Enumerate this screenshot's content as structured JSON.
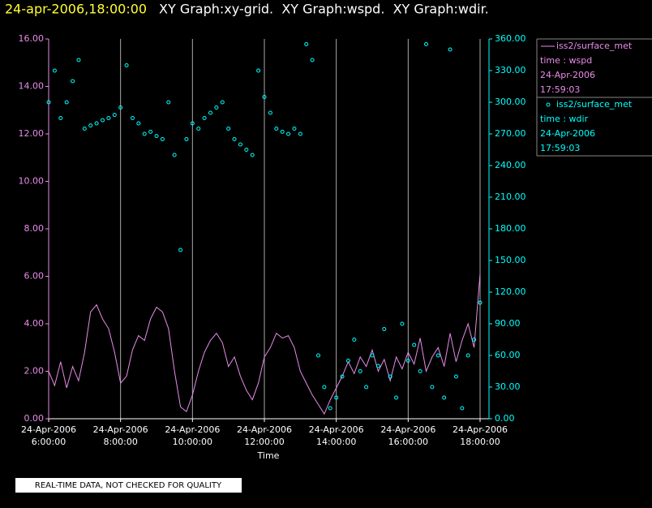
{
  "chart_data": {
    "type": "line",
    "title": "24-apr-2006,18:00:00",
    "subtitle": "XY Graph:xy-grid.  XY Graph:wspd.  XY Graph:wdir.",
    "xlabel": "Time",
    "note": "REAL-TIME DATA, NOT CHECKED FOR QUALITY",
    "grid": true,
    "x": [
      "2006-04-24T06:00:00",
      "2006-04-24T06:10:00",
      "2006-04-24T06:20:00",
      "2006-04-24T06:30:00",
      "2006-04-24T06:40:00",
      "2006-04-24T06:50:00",
      "2006-04-24T07:00:00",
      "2006-04-24T07:10:00",
      "2006-04-24T07:20:00",
      "2006-04-24T07:30:00",
      "2006-04-24T07:40:00",
      "2006-04-24T07:50:00",
      "2006-04-24T08:00:00",
      "2006-04-24T08:10:00",
      "2006-04-24T08:20:00",
      "2006-04-24T08:30:00",
      "2006-04-24T08:40:00",
      "2006-04-24T08:50:00",
      "2006-04-24T09:00:00",
      "2006-04-24T09:10:00",
      "2006-04-24T09:20:00",
      "2006-04-24T09:30:00",
      "2006-04-24T09:40:00",
      "2006-04-24T09:50:00",
      "2006-04-24T10:00:00",
      "2006-04-24T10:10:00",
      "2006-04-24T10:20:00",
      "2006-04-24T10:30:00",
      "2006-04-24T10:40:00",
      "2006-04-24T10:50:00",
      "2006-04-24T11:00:00",
      "2006-04-24T11:10:00",
      "2006-04-24T11:20:00",
      "2006-04-24T11:30:00",
      "2006-04-24T11:40:00",
      "2006-04-24T11:50:00",
      "2006-04-24T12:00:00",
      "2006-04-24T12:10:00",
      "2006-04-24T12:20:00",
      "2006-04-24T12:30:00",
      "2006-04-24T12:40:00",
      "2006-04-24T12:50:00",
      "2006-04-24T13:00:00",
      "2006-04-24T13:10:00",
      "2006-04-24T13:20:00",
      "2006-04-24T13:30:00",
      "2006-04-24T13:40:00",
      "2006-04-24T13:50:00",
      "2006-04-24T14:00:00",
      "2006-04-24T14:10:00",
      "2006-04-24T14:20:00",
      "2006-04-24T14:30:00",
      "2006-04-24T14:40:00",
      "2006-04-24T14:50:00",
      "2006-04-24T15:00:00",
      "2006-04-24T15:10:00",
      "2006-04-24T15:20:00",
      "2006-04-24T15:30:00",
      "2006-04-24T15:40:00",
      "2006-04-24T15:50:00",
      "2006-04-24T16:00:00",
      "2006-04-24T16:10:00",
      "2006-04-24T16:20:00",
      "2006-04-24T16:30:00",
      "2006-04-24T16:40:00",
      "2006-04-24T16:50:00",
      "2006-04-24T17:00:00",
      "2006-04-24T17:10:00",
      "2006-04-24T17:20:00",
      "2006-04-24T17:30:00",
      "2006-04-24T17:40:00",
      "2006-04-24T17:50:00",
      "2006-04-24T18:00:00"
    ],
    "series": [
      {
        "name": "iss2/surface_met",
        "legend_lines": [
          "time : wspd",
          "24-Apr-2006",
          "17:59:03"
        ],
        "color": "#e88ce8",
        "marker": "line",
        "values": [
          2.0,
          1.4,
          2.4,
          1.3,
          2.2,
          1.6,
          2.8,
          4.5,
          4.8,
          4.2,
          3.8,
          2.8,
          1.5,
          1.8,
          2.9,
          3.5,
          3.3,
          4.2,
          4.7,
          4.5,
          3.8,
          2.0,
          0.5,
          0.3,
          1.0,
          2.0,
          2.8,
          3.3,
          3.6,
          3.2,
          2.2,
          2.6,
          1.8,
          1.2,
          0.8,
          1.5,
          2.6,
          3.0,
          3.6,
          3.4,
          3.5,
          3.0,
          2.0,
          1.5,
          1.0,
          0.6,
          0.2,
          0.8,
          1.3,
          1.8,
          2.4,
          1.9,
          2.6,
          2.2,
          2.9,
          2.0,
          2.5,
          1.6,
          2.6,
          2.1,
          2.8,
          2.3,
          3.4,
          2.0,
          2.6,
          3.0,
          2.2,
          3.6,
          2.4,
          3.3,
          4.0,
          3.0,
          6.1
        ]
      },
      {
        "name": "iss2/surface_met",
        "legend_lines": [
          "time : wdir",
          "24-Apr-2006",
          "17:59:03"
        ],
        "color": "#00ffff",
        "marker": "circle",
        "axis": "y2",
        "values": [
          300,
          330,
          285,
          300,
          320,
          340,
          275,
          278,
          280,
          283,
          285,
          288,
          295,
          335,
          285,
          280,
          270,
          272,
          268,
          265,
          300,
          250,
          160,
          265,
          280,
          275,
          285,
          290,
          295,
          300,
          275,
          265,
          260,
          255,
          250,
          330,
          305,
          290,
          275,
          272,
          270,
          275,
          270,
          355,
          340,
          60,
          30,
          10,
          20,
          40,
          55,
          75,
          45,
          30,
          60,
          50,
          85,
          40,
          20,
          90,
          55,
          70,
          45,
          355,
          30,
          60,
          20,
          350,
          40,
          10,
          60,
          75,
          110
        ]
      }
    ],
    "xlim": [
      "2006-04-24T06:00:00",
      "2006-04-24T18:00:00"
    ],
    "xticks": [
      {
        "value": "2006-04-24T06:00:00",
        "label": "24-Apr-2006 6:00:00"
      },
      {
        "value": "2006-04-24T08:00:00",
        "label": "24-Apr-2006 8:00:00"
      },
      {
        "value": "2006-04-24T10:00:00",
        "label": "24-Apr-2006 10:00:00"
      },
      {
        "value": "2006-04-24T12:00:00",
        "label": "24-Apr-2006 12:00:00"
      },
      {
        "value": "2006-04-24T14:00:00",
        "label": "24-Apr-2006 14:00:00"
      },
      {
        "value": "2006-04-24T16:00:00",
        "label": "24-Apr-2006 16:00:00"
      },
      {
        "value": "2006-04-24T18:00:00",
        "label": "24-Apr-2006 18:00:00"
      }
    ],
    "ylim": [
      0,
      16
    ],
    "yticks": [
      {
        "value": 0,
        "label": "0.00"
      },
      {
        "value": 2,
        "label": "2.00"
      },
      {
        "value": 4,
        "label": "4.00"
      },
      {
        "value": 6,
        "label": "6.00"
      },
      {
        "value": 8,
        "label": "8.00"
      },
      {
        "value": 10,
        "label": "10.00"
      },
      {
        "value": 12,
        "label": "12.00"
      },
      {
        "value": 14,
        "label": "14.00"
      },
      {
        "value": 16,
        "label": "16.00"
      }
    ],
    "y2lim": [
      0,
      360
    ],
    "y2ticks": [
      {
        "value": 0,
        "label": "0.00"
      },
      {
        "value": 30,
        "label": "30.00"
      },
      {
        "value": 60,
        "label": "60.00"
      },
      {
        "value": 90,
        "label": "90.00"
      },
      {
        "value": 120,
        "label": "120.00"
      },
      {
        "value": 150,
        "label": "150.00"
      },
      {
        "value": 180,
        "label": "180.00"
      },
      {
        "value": 210,
        "label": "210.00"
      },
      {
        "value": 240,
        "label": "240.00"
      },
      {
        "value": 270,
        "label": "270.00"
      },
      {
        "value": 300,
        "label": "300.00"
      },
      {
        "value": 330,
        "label": "330.00"
      },
      {
        "value": 360,
        "label": "360.00"
      }
    ]
  }
}
